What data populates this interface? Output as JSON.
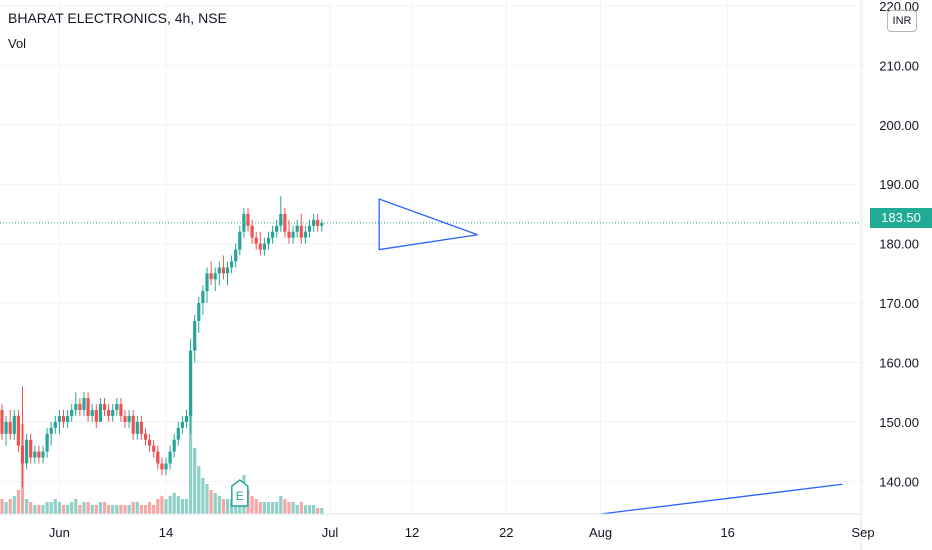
{
  "header": {
    "title": "BHARAT ELECTRONICS, 4h, NSE",
    "indicator": "Vol"
  },
  "price_axis": {
    "unit": "INR",
    "last_price_label": "183.50"
  },
  "colors": {
    "up": "#26a69a",
    "down": "#ef5350",
    "up_volume": "#8fd1c7",
    "down_volume": "#f4a7a5",
    "drawing": "#2962ff",
    "last_price_line": "#22ab94",
    "grid": "#f0f3fa"
  },
  "earnings_marker": {
    "label": "E",
    "x": 58
  },
  "chart_data": {
    "type": "candlestick",
    "symbol": "BHARAT ELECTRONICS",
    "interval": "4h",
    "exchange": "NSE",
    "x_unit": "bar index",
    "ylim": [
      134.5,
      221
    ],
    "y_ticks": [
      {
        "v": 220,
        "label": "220.00"
      },
      {
        "v": 210,
        "label": "210.00"
      },
      {
        "v": 200,
        "label": "200.00"
      },
      {
        "v": 190,
        "label": "190.00"
      },
      {
        "v": 180,
        "label": "180.00"
      },
      {
        "v": 170,
        "label": "170.00"
      },
      {
        "v": 160,
        "label": "160.00"
      },
      {
        "v": 150,
        "label": "150.00"
      },
      {
        "v": 140,
        "label": "140.00"
      }
    ],
    "x_ticks": [
      {
        "x": 14,
        "label": "Jun"
      },
      {
        "x": 40,
        "label": "14"
      },
      {
        "x": 80,
        "label": "Jul"
      },
      {
        "x": 100,
        "label": "12"
      },
      {
        "x": 123,
        "label": "22"
      },
      {
        "x": 146,
        "label": "Aug"
      },
      {
        "x": 177,
        "label": "16"
      },
      {
        "x": 210,
        "label": "Sep"
      }
    ],
    "last_price": 183.5,
    "candles": [
      [
        152,
        153,
        147,
        148,
        5
      ],
      [
        148,
        151,
        146,
        150,
        4
      ],
      [
        150,
        152,
        147,
        148,
        5
      ],
      [
        148,
        152,
        147,
        151,
        6
      ],
      [
        151,
        152,
        145,
        146,
        8
      ],
      [
        146,
        156,
        139,
        143,
        30
      ],
      [
        143,
        148,
        142,
        147,
        5
      ],
      [
        147,
        148,
        143,
        144,
        4
      ],
      [
        144,
        146,
        143,
        145,
        3
      ],
      [
        145,
        146,
        143,
        144,
        3
      ],
      [
        144,
        146,
        143,
        145,
        3
      ],
      [
        145,
        149,
        144,
        148,
        4
      ],
      [
        148,
        150,
        146,
        149,
        4
      ],
      [
        149,
        151,
        148,
        150,
        5
      ],
      [
        150,
        152,
        148,
        151,
        4
      ],
      [
        151,
        152,
        149,
        150,
        3
      ],
      [
        150,
        152,
        149,
        151,
        3
      ],
      [
        151,
        153,
        150,
        152,
        4
      ],
      [
        152,
        155,
        151,
        153,
        5
      ],
      [
        153,
        154,
        151,
        152,
        3
      ],
      [
        152,
        155,
        151,
        154,
        4
      ],
      [
        154,
        155,
        150,
        151,
        4
      ],
      [
        151,
        153,
        150,
        152,
        3
      ],
      [
        152,
        153,
        149,
        150,
        3
      ],
      [
        150,
        154,
        150,
        153,
        4
      ],
      [
        153,
        154,
        151,
        152,
        4
      ],
      [
        152,
        153,
        150,
        151,
        3
      ],
      [
        151,
        153,
        150,
        152,
        3
      ],
      [
        152,
        154,
        151,
        153,
        3
      ],
      [
        153,
        154,
        150,
        151,
        3
      ],
      [
        151,
        152,
        149,
        150,
        3
      ],
      [
        150,
        152,
        149,
        151,
        3
      ],
      [
        151,
        152,
        147,
        148,
        4
      ],
      [
        148,
        151,
        147,
        150,
        4
      ],
      [
        150,
        151,
        147,
        148,
        3
      ],
      [
        148,
        149,
        146,
        147,
        3
      ],
      [
        147,
        148,
        145,
        146,
        4
      ],
      [
        146,
        147,
        144,
        145,
        3
      ],
      [
        145,
        146,
        142,
        143,
        5
      ],
      [
        143,
        144,
        141,
        142,
        6
      ],
      [
        142,
        144,
        141,
        143,
        5
      ],
      [
        143,
        146,
        142,
        145,
        6
      ],
      [
        145,
        148,
        144,
        147,
        7
      ],
      [
        147,
        150,
        146,
        149,
        6
      ],
      [
        149,
        151,
        148,
        150,
        5
      ],
      [
        150,
        152,
        149,
        151,
        5
      ],
      [
        151,
        164,
        148,
        162,
        36
      ],
      [
        162,
        168,
        160,
        167,
        22
      ],
      [
        167,
        171,
        165,
        170,
        16
      ],
      [
        170,
        173,
        168,
        172,
        12
      ],
      [
        172,
        176,
        170,
        175,
        10
      ],
      [
        175,
        177,
        173,
        174,
        8
      ],
      [
        174,
        176,
        172,
        175,
        7
      ],
      [
        175,
        177,
        173,
        176,
        6
      ],
      [
        176,
        178,
        174,
        175,
        5
      ],
      [
        175,
        177,
        173,
        176,
        5
      ],
      [
        176,
        178,
        175,
        177,
        5
      ],
      [
        177,
        180,
        176,
        179,
        6
      ],
      [
        179,
        183,
        178,
        182,
        9
      ],
      [
        182,
        186,
        181,
        185,
        13
      ],
      [
        185,
        186,
        182,
        183,
        8
      ],
      [
        183,
        184,
        180,
        181,
        6
      ],
      [
        181,
        182,
        179,
        180,
        5
      ],
      [
        180,
        182,
        178,
        179,
        4
      ],
      [
        179,
        181,
        178,
        180,
        4
      ],
      [
        180,
        182,
        179,
        181,
        4
      ],
      [
        181,
        183,
        180,
        182,
        4
      ],
      [
        182,
        184,
        181,
        183,
        4
      ],
      [
        183,
        188,
        182,
        185,
        6
      ],
      [
        185,
        186,
        181,
        182,
        5
      ],
      [
        182,
        184,
        180,
        181,
        4
      ],
      [
        181,
        183,
        180,
        182,
        4
      ],
      [
        182,
        184,
        181,
        183,
        3
      ],
      [
        183,
        185,
        180,
        181,
        4
      ],
      [
        181,
        183,
        180,
        182,
        3
      ],
      [
        182,
        184,
        181,
        183,
        3
      ],
      [
        183,
        185,
        182,
        184,
        3
      ],
      [
        184,
        185,
        182,
        183,
        2
      ],
      [
        183,
        184,
        182,
        183.5,
        2
      ]
    ],
    "drawings": [
      {
        "type": "triangle",
        "points": [
          [
            92,
            187.5
          ],
          [
            116,
            181.5
          ],
          [
            92,
            179
          ]
        ]
      },
      {
        "type": "trend_line",
        "points": [
          [
            146,
            134.5
          ],
          [
            205,
            139.5
          ]
        ]
      }
    ]
  }
}
